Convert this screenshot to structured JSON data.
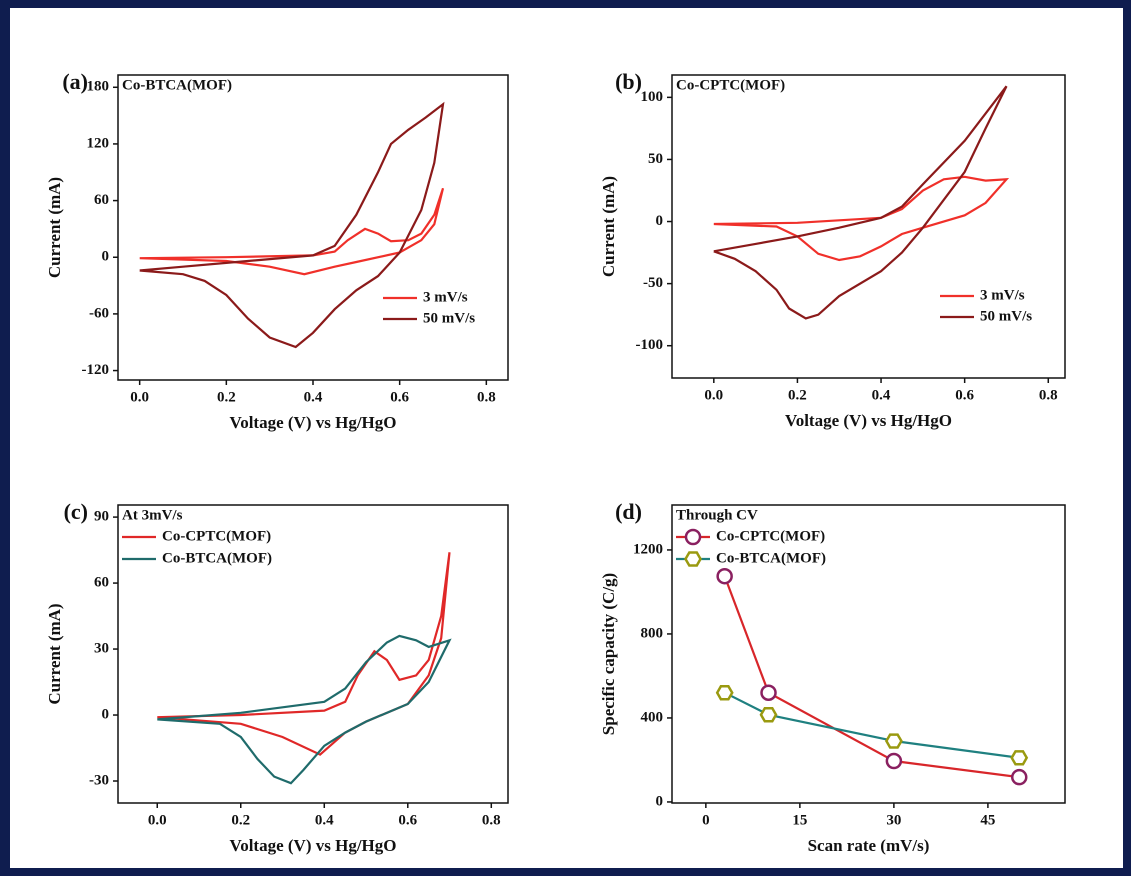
{
  "chart_data": [
    {
      "type": "line",
      "panel_label": "(a)",
      "title": "Co-BTCA(MOF)",
      "xlabel": "Voltage (V) vs Hg/HgO",
      "ylabel": "Current (mA)",
      "xlim": [
        -0.05,
        0.85
      ],
      "ylim": [
        -130,
        193
      ],
      "xticks": [
        {
          "value": 0,
          "label": "0.0"
        },
        0.2,
        0.4,
        0.6,
        0.8
      ],
      "yticks": [
        -120,
        -60,
        0,
        60,
        120,
        180
      ],
      "legend": "lower right",
      "series": [
        {
          "name": "3 mV/s",
          "color": "#f0302a",
          "x": [
            0,
            0.2,
            0.4,
            0.45,
            0.48,
            0.52,
            0.55,
            0.58,
            0.62,
            0.65,
            0.68,
            0.7,
            0.68,
            0.65,
            0.6,
            0.5,
            0.45,
            0.38,
            0.3,
            0.2,
            0
          ],
          "values": [
            -1,
            0,
            2,
            6,
            18,
            30,
            25,
            17,
            18,
            25,
            45,
            73,
            35,
            18,
            5,
            -5,
            -10,
            -18,
            -10,
            -4,
            -1
          ]
        },
        {
          "name": "50 mV/s",
          "color": "#8b1a1a",
          "x": [
            0,
            0.1,
            0.2,
            0.3,
            0.4,
            0.45,
            0.5,
            0.55,
            0.58,
            0.62,
            0.66,
            0.7,
            0.68,
            0.65,
            0.6,
            0.55,
            0.5,
            0.45,
            0.4,
            0.36,
            0.3,
            0.25,
            0.2,
            0.15,
            0.1,
            0
          ],
          "values": [
            -14,
            -10,
            -6,
            -2,
            2,
            12,
            45,
            90,
            120,
            135,
            148,
            162,
            100,
            50,
            5,
            -20,
            -35,
            -55,
            -80,
            -95,
            -85,
            -65,
            -40,
            -25,
            -18,
            -14
          ]
        }
      ]
    },
    {
      "type": "line",
      "panel_label": "(b)",
      "title": "Co-CPTC(MOF)",
      "xlabel": "Voltage (V) vs Hg/HgO",
      "ylabel": "Current (mA)",
      "xlim": [
        -0.1,
        0.84
      ],
      "ylim": [
        -126,
        118
      ],
      "xticks": [
        {
          "value": 0,
          "label": "0.0"
        },
        0.2,
        0.4,
        0.6,
        0.8
      ],
      "yticks": [
        -100,
        -50,
        0,
        50,
        100
      ],
      "legend": "lower right",
      "series": [
        {
          "name": "3 mV/s",
          "color": "#f0302a",
          "x": [
            0,
            0.2,
            0.4,
            0.45,
            0.5,
            0.55,
            0.6,
            0.65,
            0.7,
            0.65,
            0.6,
            0.5,
            0.45,
            0.4,
            0.35,
            0.3,
            0.25,
            0.2,
            0.15,
            0
          ],
          "values": [
            -2,
            -1,
            3,
            10,
            25,
            34,
            36,
            33,
            34,
            15,
            5,
            -5,
            -10,
            -20,
            -28,
            -31,
            -26,
            -12,
            -4,
            -2
          ]
        },
        {
          "name": "50 mV/s",
          "color": "#8b1a1a",
          "x": [
            0,
            0.1,
            0.2,
            0.3,
            0.4,
            0.45,
            0.5,
            0.6,
            0.7,
            0.65,
            0.6,
            0.5,
            0.45,
            0.4,
            0.3,
            0.25,
            0.22,
            0.18,
            0.15,
            0.1,
            0.05,
            0
          ],
          "values": [
            -24,
            -18,
            -12,
            -5,
            3,
            12,
            30,
            65,
            109,
            75,
            40,
            -5,
            -25,
            -40,
            -60,
            -75,
            -78,
            -70,
            -55,
            -40,
            -30,
            -24
          ]
        }
      ]
    },
    {
      "type": "line",
      "panel_label": "(c)",
      "title": "At 3mV/s",
      "xlabel": "Voltage (V) vs Hg/HgO",
      "ylabel": "Current (mA)",
      "xlim": [
        -0.094,
        0.84
      ],
      "ylim": [
        -40,
        95.5
      ],
      "xticks": [
        {
          "value": 0,
          "label": "0.0"
        },
        0.2,
        0.4,
        0.6,
        0.8
      ],
      "yticks": [
        -30,
        0,
        30,
        60,
        90
      ],
      "legend": "upper left",
      "series": [
        {
          "name": "Co-CPTC(MOF)",
          "color": "#e02828",
          "x": [
            0,
            0.2,
            0.4,
            0.45,
            0.48,
            0.52,
            0.55,
            0.58,
            0.62,
            0.65,
            0.68,
            0.7,
            0.68,
            0.65,
            0.6,
            0.5,
            0.45,
            0.39,
            0.3,
            0.2,
            0
          ],
          "values": [
            -1,
            0,
            2,
            6,
            18,
            29,
            25,
            16,
            18,
            25,
            45,
            74,
            35,
            18,
            5,
            -3,
            -8,
            -18,
            -10,
            -4,
            -1
          ]
        },
        {
          "name": "Co-BTCA(MOF)",
          "color": "#1f6b6b",
          "x": [
            0,
            0.2,
            0.4,
            0.45,
            0.5,
            0.55,
            0.58,
            0.62,
            0.65,
            0.7,
            0.65,
            0.6,
            0.5,
            0.45,
            0.4,
            0.35,
            0.32,
            0.28,
            0.24,
            0.2,
            0.15,
            0
          ],
          "values": [
            -2,
            1,
            6,
            12,
            24,
            33,
            36,
            34,
            31,
            34,
            15,
            5,
            -3,
            -8,
            -14,
            -25,
            -31,
            -28,
            -20,
            -10,
            -4,
            -2
          ]
        }
      ]
    },
    {
      "type": "line",
      "panel_label": "(d)",
      "title": "Through CV",
      "xlabel": "Scan rate (mV/s)",
      "ylabel": "Specific capacity (C/g)",
      "xlim": [
        -5.4,
        57.3
      ],
      "ylim": [
        -5,
        1414
      ],
      "xticks": [
        0,
        15,
        30,
        45
      ],
      "yticks": [
        0,
        400,
        800,
        1200
      ],
      "legend": "upper left",
      "x": [
        3,
        10,
        30,
        50
      ],
      "series": [
        {
          "name": "Co-CPTC(MOF)",
          "color": "#d8262a",
          "marker": "circle",
          "marker_color": "#8a2060",
          "values": [
            1075,
            520,
            195,
            118
          ]
        },
        {
          "name": "Co-BTCA(MOF)",
          "color": "#1f8080",
          "marker": "hexagon",
          "marker_color": "#9a9a10",
          "values": [
            520,
            415,
            290,
            210
          ]
        }
      ]
    }
  ]
}
